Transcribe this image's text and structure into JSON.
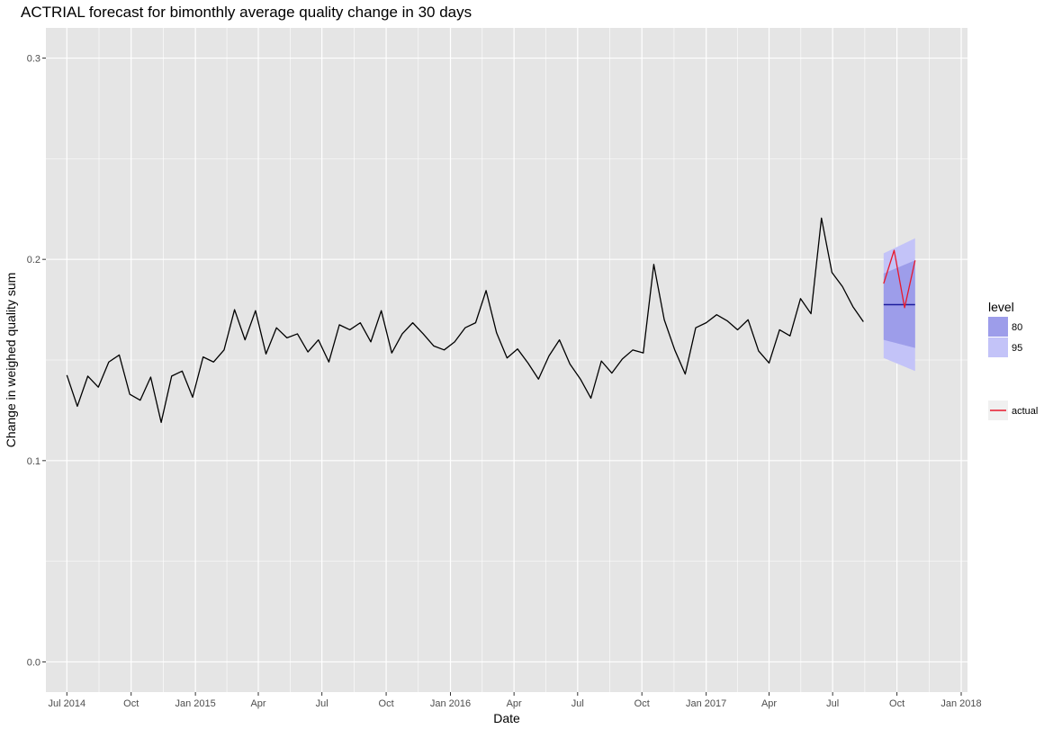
{
  "chart_data": {
    "type": "line",
    "title": "ACTRIAL forecast for bimonthly average quality change in 30 days",
    "xlabel": "Date",
    "ylabel": "Change in weighed quality sum",
    "ylim": [
      -0.015,
      0.315
    ],
    "xlim": [
      "2014-06-01",
      "2018-01-10"
    ],
    "grid": true,
    "legend_position": "right",
    "x_ticks": [
      {
        "date": "2014-07-01",
        "label": "Jul 2014"
      },
      {
        "date": "2014-10-01",
        "label": "Oct"
      },
      {
        "date": "2015-01-01",
        "label": "Jan 2015"
      },
      {
        "date": "2015-04-01",
        "label": "Apr"
      },
      {
        "date": "2015-07-01",
        "label": "Jul"
      },
      {
        "date": "2015-10-01",
        "label": "Oct"
      },
      {
        "date": "2016-01-01",
        "label": "Jan 2016"
      },
      {
        "date": "2016-04-01",
        "label": "Apr"
      },
      {
        "date": "2016-07-01",
        "label": "Jul"
      },
      {
        "date": "2016-10-01",
        "label": "Oct"
      },
      {
        "date": "2017-01-01",
        "label": "Jan 2017"
      },
      {
        "date": "2017-04-01",
        "label": "Apr"
      },
      {
        "date": "2017-07-01",
        "label": "Jul"
      },
      {
        "date": "2017-10-01",
        "label": "Oct"
      },
      {
        "date": "2018-01-01",
        "label": "Jan 2018"
      }
    ],
    "y_ticks": [
      {
        "value": 0.0,
        "label": "0.0"
      },
      {
        "value": 0.1,
        "label": "0.1"
      },
      {
        "value": 0.2,
        "label": "0.2"
      },
      {
        "value": 0.3,
        "label": "0.3"
      }
    ],
    "series": [
      {
        "color": "#000000",
        "points": [
          [
            "2014-07-01",
            0.1425
          ],
          [
            "2014-07-16",
            0.127
          ],
          [
            "2014-07-31",
            0.142
          ],
          [
            "2014-08-15",
            0.1365
          ],
          [
            "2014-08-30",
            0.149
          ],
          [
            "2014-09-14",
            0.1525
          ],
          [
            "2014-09-29",
            0.133
          ],
          [
            "2014-10-14",
            0.13
          ],
          [
            "2014-10-29",
            0.1415
          ],
          [
            "2014-11-13",
            0.119
          ],
          [
            "2014-11-28",
            0.142
          ],
          [
            "2014-12-13",
            0.1445
          ],
          [
            "2014-12-28",
            0.1315
          ],
          [
            "2015-01-12",
            0.1515
          ],
          [
            "2015-01-27",
            0.149
          ],
          [
            "2015-02-11",
            0.155
          ],
          [
            "2015-02-26",
            0.175
          ],
          [
            "2015-03-13",
            0.16
          ],
          [
            "2015-03-28",
            0.1745
          ],
          [
            "2015-04-12",
            0.153
          ],
          [
            "2015-04-27",
            0.166
          ],
          [
            "2015-05-12",
            0.161
          ],
          [
            "2015-05-27",
            0.163
          ],
          [
            "2015-06-11",
            0.154
          ],
          [
            "2015-06-26",
            0.16
          ],
          [
            "2015-07-11",
            0.149
          ],
          [
            "2015-07-26",
            0.1675
          ],
          [
            "2015-08-10",
            0.165
          ],
          [
            "2015-08-25",
            0.1685
          ],
          [
            "2015-09-09",
            0.159
          ],
          [
            "2015-09-24",
            0.1745
          ],
          [
            "2015-10-09",
            0.1535
          ],
          [
            "2015-10-24",
            0.163
          ],
          [
            "2015-11-08",
            0.1685
          ],
          [
            "2015-11-23",
            0.163
          ],
          [
            "2015-12-08",
            0.157
          ],
          [
            "2015-12-23",
            0.155
          ],
          [
            "2016-01-07",
            0.159
          ],
          [
            "2016-01-22",
            0.166
          ],
          [
            "2016-02-06",
            0.1685
          ],
          [
            "2016-02-21",
            0.1845
          ],
          [
            "2016-03-07",
            0.1635
          ],
          [
            "2016-03-22",
            0.151
          ],
          [
            "2016-04-06",
            0.1555
          ],
          [
            "2016-04-21",
            0.1485
          ],
          [
            "2016-05-06",
            0.1405
          ],
          [
            "2016-05-21",
            0.152
          ],
          [
            "2016-06-05",
            0.16
          ],
          [
            "2016-06-20",
            0.148
          ],
          [
            "2016-07-05",
            0.1405
          ],
          [
            "2016-07-20",
            0.131
          ],
          [
            "2016-08-04",
            0.1495
          ],
          [
            "2016-08-19",
            0.1435
          ],
          [
            "2016-09-03",
            0.1505
          ],
          [
            "2016-09-18",
            0.155
          ],
          [
            "2016-10-03",
            0.1535
          ],
          [
            "2016-10-18",
            0.1975
          ],
          [
            "2016-11-02",
            0.17
          ],
          [
            "2016-11-17",
            0.155
          ],
          [
            "2016-12-02",
            0.143
          ],
          [
            "2016-12-17",
            0.166
          ],
          [
            "2017-01-01",
            0.1685
          ],
          [
            "2017-01-16",
            0.1725
          ],
          [
            "2017-01-31",
            0.1695
          ],
          [
            "2017-02-15",
            0.165
          ],
          [
            "2017-03-02",
            0.17
          ],
          [
            "2017-03-17",
            0.1545
          ],
          [
            "2017-04-01",
            0.1485
          ],
          [
            "2017-04-16",
            0.165
          ],
          [
            "2017-05-01",
            0.162
          ],
          [
            "2017-05-16",
            0.1805
          ],
          [
            "2017-05-31",
            0.173
          ],
          [
            "2017-06-15",
            0.2205
          ],
          [
            "2017-06-30",
            0.1935
          ],
          [
            "2017-07-15",
            0.1865
          ],
          [
            "2017-07-30",
            0.1765
          ],
          [
            "2017-08-14",
            0.169
          ]
        ]
      },
      {
        "name": "actual",
        "color": "#e8192c",
        "points": [
          [
            "2017-09-12",
            0.188
          ],
          [
            "2017-09-27",
            0.2045
          ],
          [
            "2017-10-12",
            0.176
          ],
          [
            "2017-10-27",
            0.1995
          ]
        ]
      }
    ],
    "forecast": {
      "color": "#1c1c9c",
      "points": [
        [
          "2017-09-12",
          0.1775
        ],
        [
          "2017-09-27",
          0.1775
        ],
        [
          "2017-10-12",
          0.1775
        ],
        [
          "2017-10-27",
          0.1775
        ]
      ],
      "bands": [
        {
          "level": "95",
          "color": "#c3c3f8",
          "lower": [
            [
              "2017-09-12",
              0.151
            ],
            [
              "2017-10-27",
              0.1445
            ]
          ],
          "upper": [
            [
              "2017-09-12",
              0.203
            ],
            [
              "2017-10-27",
              0.2105
            ]
          ]
        },
        {
          "level": "80",
          "color": "#9d9dea",
          "lower": [
            [
              "2017-09-12",
              0.16
            ],
            [
              "2017-10-27",
              0.156
            ]
          ],
          "upper": [
            [
              "2017-09-12",
              0.193
            ],
            [
              "2017-10-27",
              0.1995
            ]
          ]
        }
      ]
    },
    "legend": {
      "level_title": "level",
      "levels": [
        {
          "label": "80",
          "color": "#9d9dea"
        },
        {
          "label": "95",
          "color": "#c3c3f8"
        }
      ],
      "actual_label": "actual",
      "actual_color": "#e8192c"
    },
    "colors": {
      "panel_background": "#e5e5e5",
      "grid": "#ffffff",
      "legend_key_background": "#f0f0f0"
    }
  }
}
